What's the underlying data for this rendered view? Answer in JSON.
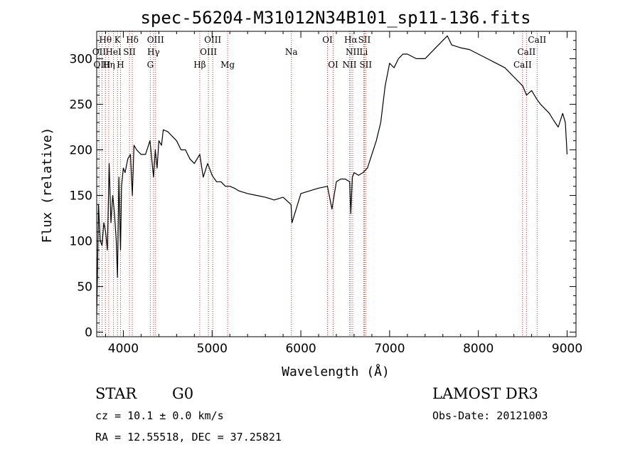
{
  "chart_data": {
    "type": "line",
    "title": "spec-56204-M31012N34B101_sp11-136.fits",
    "xlabel": "Wavelength (Å)",
    "ylabel": "Flux (relative)",
    "xlim": [
      3700,
      9100
    ],
    "ylim": [
      -5,
      330
    ],
    "x_ticks": [
      4000,
      5000,
      6000,
      7000,
      8000,
      9000
    ],
    "y_ticks": [
      0,
      50,
      100,
      150,
      200,
      250,
      300
    ],
    "grid": false,
    "series": [
      {
        "color": "#000000",
        "x": [
          3700,
          3710,
          3720,
          3730,
          3740,
          3760,
          3780,
          3800,
          3820,
          3840,
          3860,
          3880,
          3900,
          3920,
          3934,
          3950,
          3968,
          3980,
          4000,
          4020,
          4050,
          4080,
          4101,
          4120,
          4150,
          4200,
          4250,
          4300,
          4340,
          4360,
          4380,
          4400,
          4430,
          4450,
          4500,
          4550,
          4600,
          4650,
          4700,
          4750,
          4800,
          4861,
          4900,
          4950,
          5000,
          5050,
          5100,
          5150,
          5200,
          5250,
          5300,
          5400,
          5500,
          5600,
          5700,
          5800,
          5890,
          5900,
          6000,
          6100,
          6200,
          6300,
          6350,
          6400,
          6450,
          6500,
          6550,
          6563,
          6580,
          6600,
          6650,
          6700,
          6750,
          6800,
          6850,
          6900,
          6950,
          7000,
          7050,
          7100,
          7150,
          7200,
          7300,
          7400,
          7500,
          7600,
          7650,
          7700,
          7800,
          7900,
          8000,
          8100,
          8200,
          8300,
          8400,
          8500,
          8542,
          8600,
          8662,
          8700,
          8800,
          8850,
          8900,
          8950,
          8980,
          9000
        ],
        "y": [
          20,
          70,
          140,
          120,
          100,
          95,
          120,
          110,
          90,
          185,
          120,
          150,
          130,
          100,
          60,
          170,
          90,
          160,
          180,
          175,
          190,
          195,
          150,
          205,
          200,
          195,
          195,
          210,
          170,
          200,
          180,
          210,
          205,
          222,
          220,
          215,
          210,
          200,
          200,
          190,
          185,
          195,
          170,
          185,
          172,
          165,
          165,
          160,
          160,
          158,
          155,
          152,
          150,
          148,
          145,
          148,
          140,
          120,
          152,
          155,
          158,
          160,
          135,
          165,
          168,
          168,
          165,
          130,
          170,
          175,
          172,
          175,
          180,
          195,
          210,
          230,
          270,
          295,
          290,
          300,
          305,
          305,
          300,
          300,
          310,
          320,
          325,
          315,
          312,
          310,
          305,
          300,
          295,
          290,
          280,
          270,
          260,
          265,
          255,
          250,
          240,
          232,
          225,
          240,
          230,
          195
        ]
      }
    ],
    "spectral_lines": [
      {
        "label": "Hθ",
        "x": 3798,
        "row": 1
      },
      {
        "label": "K",
        "x": 3934,
        "row": 1
      },
      {
        "label": "Hδ",
        "x": 4101,
        "row": 1
      },
      {
        "label": "OIII",
        "x": 4363,
        "row": 1
      },
      {
        "label": "OIII",
        "x": 5007,
        "row": 1
      },
      {
        "label": "OI",
        "x": 6300,
        "row": 1
      },
      {
        "label": "Hα",
        "x": 6563,
        "row": 1
      },
      {
        "label": "SII",
        "x": 6716,
        "row": 1
      },
      {
        "label": "CaII",
        "x": 8662,
        "row": 1
      },
      {
        "label": "OII",
        "x": 3727,
        "row": 2
      },
      {
        "label": "HeI",
        "x": 3889,
        "row": 2
      },
      {
        "label": "SII",
        "x": 4069,
        "row": 2
      },
      {
        "label": "Hγ",
        "x": 4340,
        "row": 2
      },
      {
        "label": "OIII",
        "x": 4959,
        "row": 2
      },
      {
        "label": "Na",
        "x": 5893,
        "row": 2
      },
      {
        "label": "NII",
        "x": 6584,
        "row": 2
      },
      {
        "label": "Li",
        "x": 6708,
        "row": 2
      },
      {
        "label": "CaII",
        "x": 8542,
        "row": 2
      },
      {
        "label": "OIII",
        "x": 3760,
        "row": 3
      },
      {
        "label": "Hη",
        "x": 3835,
        "row": 3
      },
      {
        "label": "H",
        "x": 3968,
        "row": 3
      },
      {
        "label": "G",
        "x": 4304,
        "row": 3
      },
      {
        "label": "Hβ",
        "x": 4861,
        "row": 3
      },
      {
        "label": "Mg",
        "x": 5175,
        "row": 3
      },
      {
        "label": "OI",
        "x": 6364,
        "row": 3
      },
      {
        "label": "NII",
        "x": 6548,
        "row": 3
      },
      {
        "label": "SII",
        "x": 6731,
        "row": 3
      },
      {
        "label": "CaII",
        "x": 8498,
        "row": 3
      }
    ]
  },
  "info": {
    "object_class": "STAR",
    "subclass": "G0",
    "survey": "LAMOST DR3",
    "redshift": "cz =  10.1 ± 0.0 km/s",
    "obs_date": "Obs-Date: 20121003",
    "coords": "RA =  12.55518, DEC =  37.25821"
  }
}
